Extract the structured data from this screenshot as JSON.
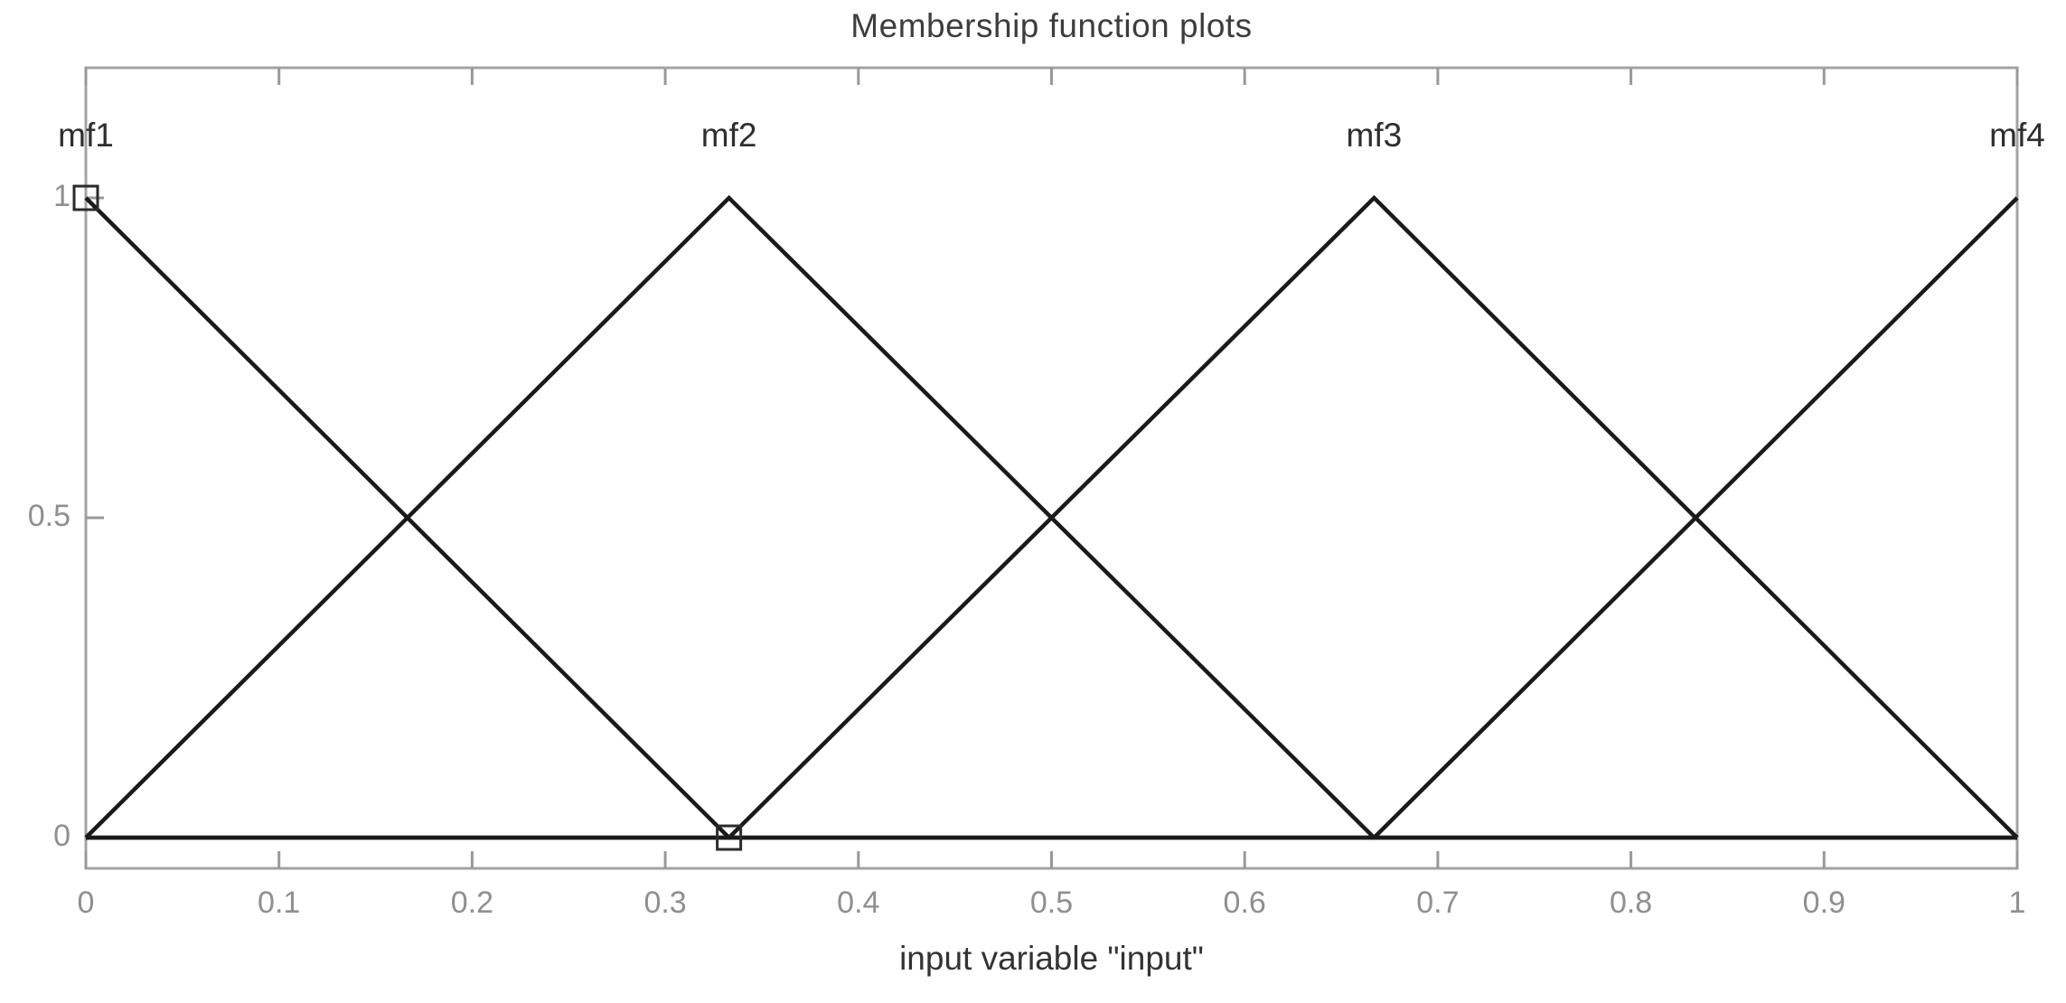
{
  "chart_data": {
    "type": "line",
    "title": "Membership function plots",
    "xlabel": "input variable \"input\"",
    "ylabel": "",
    "xlim": [
      0,
      1
    ],
    "ylim": [
      -0.05,
      1.2
    ],
    "grid": false,
    "legend": "none",
    "x_ticks": [
      0,
      0.1,
      0.2,
      0.3,
      0.4,
      0.5,
      0.6,
      0.7,
      0.8,
      0.9,
      1
    ],
    "x_tick_labels": [
      "0",
      "0.1",
      "0.2",
      "0.3",
      "0.4",
      "0.5",
      "0.6",
      "0.7",
      "0.8",
      "0.9",
      "1"
    ],
    "y_ticks": [
      0,
      0.5,
      1
    ],
    "y_tick_labels": [
      "0",
      "0.5",
      "1"
    ],
    "series": [
      {
        "name": "mf1",
        "shape": "trimf",
        "params": [
          -0.333,
          0,
          0.333
        ],
        "points": [
          [
            0,
            1
          ],
          [
            0.333,
            0
          ],
          [
            1,
            0
          ]
        ]
      },
      {
        "name": "mf2",
        "shape": "trimf",
        "params": [
          0,
          0.333,
          0.667
        ],
        "points": [
          [
            0,
            0
          ],
          [
            0.333,
            1
          ],
          [
            0.667,
            0
          ],
          [
            1,
            0
          ]
        ]
      },
      {
        "name": "mf3",
        "shape": "trimf",
        "params": [
          0.333,
          0.667,
          1
        ],
        "points": [
          [
            0,
            0
          ],
          [
            0.333,
            0
          ],
          [
            0.667,
            1
          ],
          [
            1,
            0
          ]
        ]
      },
      {
        "name": "mf4",
        "shape": "trimf",
        "params": [
          0.667,
          1,
          1.333
        ],
        "points": [
          [
            0,
            0
          ],
          [
            0.667,
            0
          ],
          [
            1,
            1
          ]
        ]
      }
    ],
    "mf_labels": [
      {
        "text": "mf1",
        "x": 0
      },
      {
        "text": "mf2",
        "x": 0.333
      },
      {
        "text": "mf3",
        "x": 0.667
      },
      {
        "text": "mf4",
        "x": 1
      }
    ],
    "selection_handles": [
      {
        "x": 0,
        "y": 1
      },
      {
        "x": 0.333,
        "y": 0
      }
    ],
    "colors": {
      "line": "#1a1a1a",
      "axis": "#a3a3a3",
      "tick": "#999999",
      "tick_label": "#8f8f8f",
      "title": "#3d3d3d",
      "mf_label": "#2e2e2e",
      "xlabel": "#333333",
      "handle": "#2b2b2b",
      "background": "#ffffff"
    }
  }
}
